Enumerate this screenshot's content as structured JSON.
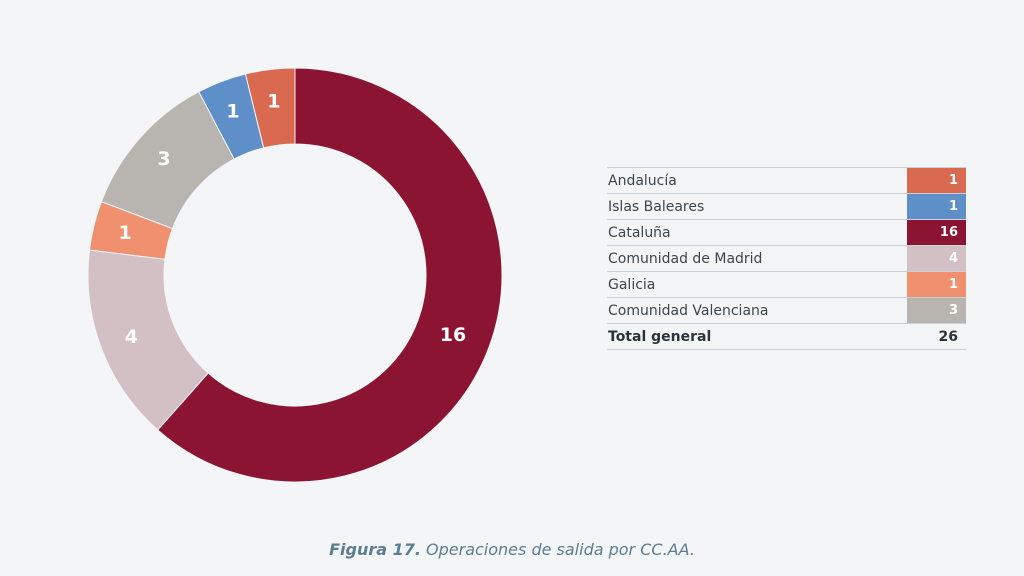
{
  "chart_data": {
    "type": "pie",
    "variant": "donut",
    "title": "Operaciones de salida por CC.AA.",
    "start": "top",
    "direction": "clockwise",
    "slices": [
      {
        "label": "Cataluña",
        "value": 16,
        "color": "#8c1433"
      },
      {
        "label": "Comunidad de Madrid",
        "value": 4,
        "color": "#d3c0c4"
      },
      {
        "label": "Galicia",
        "value": 1,
        "color": "#f0906e"
      },
      {
        "label": "Comunidad Valenciana",
        "value": 3,
        "color": "#b8b4af"
      },
      {
        "label": "Islas Baleares",
        "value": 1,
        "color": "#5f8fc8"
      },
      {
        "label": "Andalucía",
        "value": 1,
        "color": "#d9694f"
      }
    ]
  },
  "table": {
    "rows": [
      {
        "label": "Andalucía",
        "value": "1",
        "color": "#d9694f"
      },
      {
        "label": "Islas Baleares",
        "value": "1",
        "color": "#5f8fc8"
      },
      {
        "label": "Cataluña",
        "value": "16",
        "color": "#8c1433"
      },
      {
        "label": "Comunidad de Madrid",
        "value": "4",
        "color": "#d3c0c4"
      },
      {
        "label": "Galicia",
        "value": "1",
        "color": "#f0906e"
      },
      {
        "label": "Comunidad Valenciana",
        "value": "3",
        "color": "#b8b4af"
      }
    ],
    "total_label": "Total general",
    "total_value": "26"
  },
  "caption": {
    "figure": "Figura 17.",
    "text": "Operaciones de salida por CC.AA."
  }
}
